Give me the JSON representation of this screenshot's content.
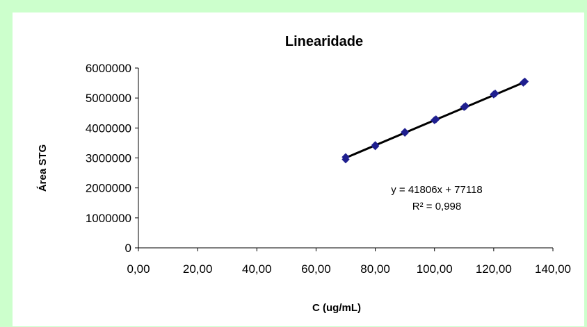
{
  "chart_data": {
    "type": "scatter",
    "title": "Linearidade",
    "xlabel": "C (ug/mL)",
    "ylabel": "Área STG",
    "xlim": [
      0,
      140
    ],
    "ylim": [
      0,
      6000000
    ],
    "x_ticks": [
      "0,00",
      "20,00",
      "40,00",
      "60,00",
      "80,00",
      "100,00",
      "120,00",
      "140,00"
    ],
    "y_ticks": [
      "0",
      "1000000",
      "2000000",
      "3000000",
      "4000000",
      "5000000",
      "6000000"
    ],
    "series": [
      {
        "marker_color": "#1f1f8f",
        "points": [
          {
            "x": 70,
            "y": 2950000
          },
          {
            "x": 70,
            "y": 3030000
          },
          {
            "x": 80,
            "y": 3390000
          },
          {
            "x": 80,
            "y": 3430000
          },
          {
            "x": 90,
            "y": 3840000
          },
          {
            "x": 90,
            "y": 3870000
          },
          {
            "x": 100,
            "y": 4260000
          },
          {
            "x": 100.5,
            "y": 4290000
          },
          {
            "x": 110,
            "y": 4700000
          },
          {
            "x": 110.5,
            "y": 4730000
          },
          {
            "x": 120,
            "y": 5120000
          },
          {
            "x": 120.5,
            "y": 5150000
          },
          {
            "x": 130,
            "y": 5510000
          },
          {
            "x": 130.5,
            "y": 5550000
          }
        ]
      }
    ],
    "trendline": {
      "slope": 41806,
      "intercept": 77118,
      "x_range": [
        70,
        130.5
      ],
      "color": "#000000"
    },
    "annotations": {
      "equation": "y = 41806x + 77118",
      "r_squared": "R² = 0,998"
    },
    "grid": false
  }
}
